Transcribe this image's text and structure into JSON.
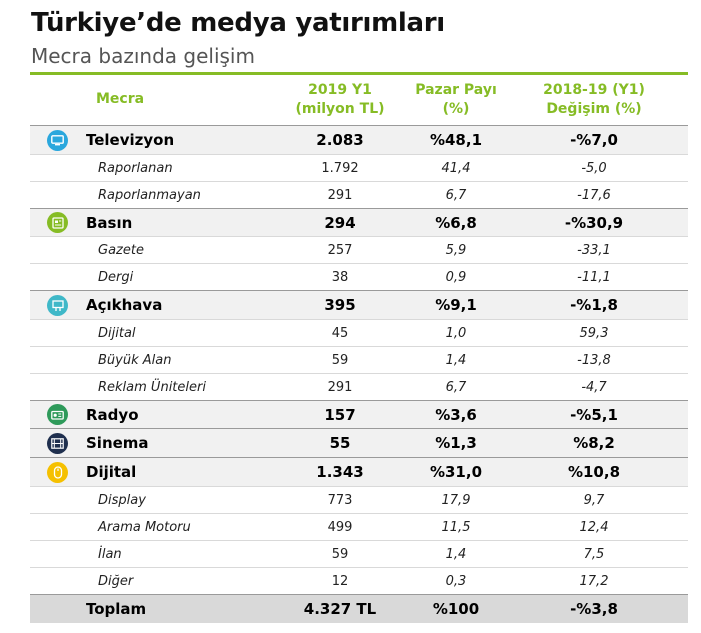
{
  "title": "Türkiye’de medya yatırımları",
  "subtitle": "Mecra bazında gelişim",
  "header": {
    "mecra": "Mecra",
    "col1_line1": "2019 Y1",
    "col1_line2": "(milyon TL)",
    "col2_line1": "Pazar Payı",
    "col2_line2": "(%)",
    "col3_line1": "2018-19 (Y1)",
    "col3_line2": "Değişim (%)"
  },
  "colors": {
    "accent_green": "#86bc25",
    "tv_icon": "#2aa7dd",
    "basin_icon": "#86bc25",
    "acikhava_icon": "#3fb8c8",
    "radyo_icon": "#2e9a5a",
    "sinema_icon": "#1f2f4e",
    "dijital_icon": "#f5c000"
  },
  "rows": {
    "televizyon": {
      "icon": "tv-icon",
      "label": "Televizyon",
      "v1": "2.083",
      "v2": "%48,1",
      "v3": "-%7,0"
    },
    "raporlanan": {
      "label": "Raporlanan",
      "v1": "1.792",
      "v2": "41,4",
      "v3": "-5,0"
    },
    "raporlanmayan": {
      "label": "Raporlanmayan",
      "v1": "291",
      "v2": "6,7",
      "v3": "-17,6"
    },
    "basin": {
      "icon": "newspaper-icon",
      "label": "Basın",
      "v1": "294",
      "v2": "%6,8",
      "v3": "-%30,9"
    },
    "gazete": {
      "label": "Gazete",
      "v1": "257",
      "v2": "5,9",
      "v3": "-33,1"
    },
    "dergi": {
      "label": "Dergi",
      "v1": "38",
      "v2": "0,9",
      "v3": "-11,1"
    },
    "acikhava": {
      "icon": "billboard-icon",
      "label": "Açıkhava",
      "v1": "395",
      "v2": "%9,1",
      "v3": "-%1,8"
    },
    "acikhava_dijital": {
      "label": "Dijital",
      "v1": "45",
      "v2": "1,0",
      "v3": "59,3"
    },
    "buyuk_alan": {
      "label": "Büyük Alan",
      "v1": "59",
      "v2": "1,4",
      "v3": "-13,8"
    },
    "reklam_uniteleri": {
      "label": "Reklam Üniteleri",
      "v1": "291",
      "v2": "6,7",
      "v3": "-4,7"
    },
    "radyo": {
      "icon": "radio-icon",
      "label": "Radyo",
      "v1": "157",
      "v2": "%3,6",
      "v3": "-%5,1"
    },
    "sinema": {
      "icon": "film-icon",
      "label": "Sinema",
      "v1": "55",
      "v2": "%1,3",
      "v3": "%8,2"
    },
    "dijital": {
      "icon": "mouse-icon",
      "label": "Dijital",
      "v1": "1.343",
      "v2": "%31,0",
      "v3": "%10,8"
    },
    "display": {
      "label": "Display",
      "v1": "773",
      "v2": "17,9",
      "v3": "9,7"
    },
    "arama_motoru": {
      "label": "Arama Motoru",
      "v1": "499",
      "v2": "11,5",
      "v3": "12,4"
    },
    "ilan": {
      "label": "İlan",
      "v1": "59",
      "v2": "1,4",
      "v3": "7,5"
    },
    "diger": {
      "label": "Diğer",
      "v1": "12",
      "v2": "0,3",
      "v3": "17,2"
    },
    "toplam": {
      "label": "Toplam",
      "v1": "4.327 TL",
      "v2": "%100",
      "v3": "-%3,8"
    }
  }
}
